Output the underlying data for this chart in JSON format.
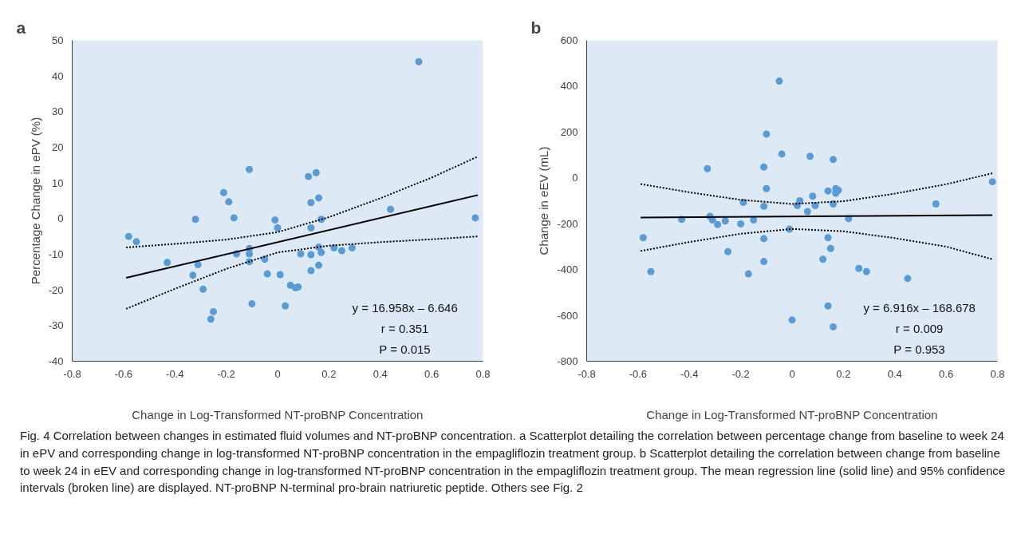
{
  "chart_data": [
    {
      "type": "scatter",
      "title": "a",
      "xlabel": "Change in Log-Transformed NT-proBNP Concentration",
      "ylabel": "Percentage Change in ePV (%)",
      "xlim": [
        -0.8,
        0.8
      ],
      "ylim": [
        -40,
        50
      ],
      "xticks": [
        -0.8,
        -0.6,
        -0.4,
        -0.2,
        0,
        0.2,
        0.4,
        0.6,
        0.8
      ],
      "yticks": [
        -40,
        -30,
        -20,
        -10,
        0,
        10,
        20,
        30,
        40,
        50
      ],
      "grid": false,
      "series": [
        {
          "marker": "circle",
          "color": "#5b9bd5",
          "x": [
            -0.58,
            -0.55,
            -0.43,
            -0.32,
            -0.31,
            -0.33,
            -0.29,
            -0.25,
            -0.26,
            -0.21,
            -0.19,
            -0.17,
            -0.16,
            -0.11,
            -0.11,
            -0.11,
            -0.11,
            -0.1,
            -0.05,
            -0.04,
            -0.01,
            0.0,
            0.01,
            0.03,
            0.05,
            0.07,
            0.08,
            0.09,
            0.12,
            0.13,
            0.13,
            0.13,
            0.15,
            0.16,
            0.17,
            0.13,
            0.16,
            0.17,
            0.22,
            0.25,
            0.29,
            0.16,
            0.44,
            0.55,
            0.77
          ],
          "values": [
            -5.0,
            -6.5,
            -12.3,
            -0.2,
            -12.9,
            -15.9,
            -19.8,
            -26.1,
            -28.2,
            7.3,
            4.7,
            0.2,
            -9.9,
            13.8,
            -8.4,
            -9.9,
            -12.1,
            -23.9,
            -11.4,
            -15.5,
            -0.4,
            -2.6,
            -15.7,
            -24.5,
            -18.7,
            -19.4,
            -19.2,
            -9.9,
            11.8,
            4.5,
            -10.1,
            -14.6,
            12.9,
            5.8,
            -0.2,
            -2.6,
            -8.0,
            -9.5,
            -8.2,
            -9.0,
            -8.2,
            -13.1,
            2.6,
            44,
            0.2
          ]
        },
        {
          "type": "line",
          "color": "#000000",
          "line_style": "solid",
          "x": [
            -0.59,
            0.78
          ],
          "values": [
            -16.6,
            6.6
          ]
        },
        {
          "type": "line",
          "color": "#000000",
          "line_style": "dotted",
          "x": [
            -0.59,
            -0.4,
            -0.2,
            0,
            0.2,
            0.4,
            0.6,
            0.78
          ],
          "values": [
            -8.1,
            -7.1,
            -5.9,
            -3.8,
            0.4,
            5.7,
            11.5,
            17.4
          ]
        },
        {
          "type": "line",
          "color": "#000000",
          "line_style": "dotted",
          "x": [
            -0.59,
            -0.4,
            -0.2,
            0,
            0.2,
            0.4,
            0.6,
            0.78
          ],
          "values": [
            -25.3,
            -19.7,
            -14.1,
            -9.5,
            -7.6,
            -6.6,
            -5.8,
            -5.0
          ]
        }
      ],
      "annotations": [
        "y = 16.958x – 6.646",
        "r = 0.351",
        "P = 0.015"
      ]
    },
    {
      "type": "scatter",
      "title": "b",
      "xlabel": "Change in Log-Transformed NT-proBNP Concentration",
      "ylabel": "Change in eEV (mL)",
      "xlim": [
        -0.8,
        0.8
      ],
      "ylim": [
        -800,
        600
      ],
      "xticks": [
        -0.8,
        -0.6,
        -0.4,
        -0.2,
        0,
        0.2,
        0.4,
        0.6,
        0.8
      ],
      "yticks": [
        -800,
        -600,
        -400,
        -200,
        0,
        200,
        400,
        600
      ],
      "grid": false,
      "series": [
        {
          "marker": "circle",
          "color": "#5b9bd5",
          "x": [
            -0.05,
            -0.1,
            -0.04,
            -0.33,
            -0.11,
            -0.1,
            -0.19,
            -0.11,
            0.02,
            0.03,
            -0.43,
            -0.32,
            -0.31,
            -0.29,
            -0.26,
            -0.2,
            -0.15,
            -0.58,
            -0.01,
            -0.11,
            -0.25,
            -0.11,
            -0.55,
            -0.17,
            0.0,
            0.07,
            0.16,
            0.14,
            0.17,
            0.18,
            0.17,
            0.08,
            0.09,
            0.06,
            0.16,
            0.56,
            0.78,
            0.22,
            0.14,
            0.15,
            0.12,
            0.26,
            0.29,
            0.45,
            0.14,
            0.16
          ],
          "values": [
            422,
            191,
            104,
            40,
            47,
            -47,
            -107,
            -124,
            -121,
            -100,
            -181,
            -168,
            -184,
            -204,
            -188,
            -201,
            -184,
            -261,
            -224,
            -265,
            -322,
            -365,
            -409,
            -419,
            -620,
            94,
            80,
            -57,
            -47,
            -54,
            -67,
            -80,
            -121,
            -147,
            -114,
            -114,
            -17,
            -178,
            -261,
            -308,
            -355,
            -395,
            -409,
            -439,
            -559,
            -650
          ]
        },
        {
          "type": "line",
          "color": "#000000",
          "line_style": "solid",
          "x": [
            -0.59,
            0.78
          ],
          "values": [
            -173,
            -163
          ]
        },
        {
          "type": "line",
          "color": "#000000",
          "line_style": "dotted",
          "x": [
            -0.59,
            -0.4,
            -0.2,
            0,
            0.2,
            0.4,
            0.6,
            0.78
          ],
          "values": [
            -27,
            -63,
            -96,
            -114,
            -102,
            -69,
            -28,
            20
          ]
        },
        {
          "type": "line",
          "color": "#000000",
          "line_style": "dotted",
          "x": [
            -0.59,
            -0.4,
            -0.2,
            0,
            0.2,
            0.4,
            0.6,
            0.78
          ],
          "values": [
            -319,
            -280,
            -244,
            -223,
            -233,
            -263,
            -300,
            -355
          ]
        }
      ],
      "annotations": [
        "y = 6.916x – 168.678",
        "r = 0.009",
        "P = 0.953",
        "Fig. 4  Correlation between changes in estimated fluid volumes and NT-proBNP concentration. a Scatterplot detailing the correlation between percentage change from baseline to week 24 in ePV and corresponding change in log-transformed NT-proBNP concentration in the empagliflozin treatment group. b Scatterplot detailing the correlation between change from baseline to week 24 in eEV and corresponding change in log-transformed NT-proBNP concentration in the empagliflozin treatment group. The mean regression line (solid line) and 95% confidence intervals (broken line) are displayed. NT-proBNP N-terminal pro-brain natriuretic peptide. Others see Fig. 2"
      ]
    }
  ]
}
